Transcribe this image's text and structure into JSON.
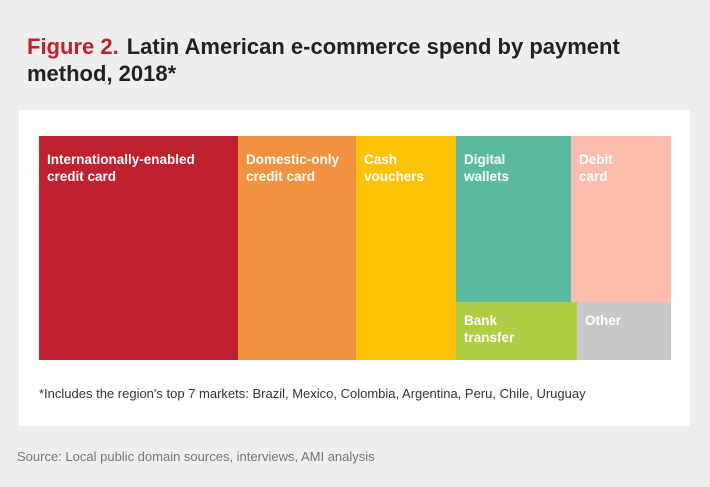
{
  "header": {
    "figure_label": "Figure 2.",
    "title": "Latin American e-commerce spend by payment method, 2018*"
  },
  "chart_data": {
    "type": "treemap",
    "title": "Latin American e-commerce spend by payment method, 2018*",
    "cells": [
      {
        "id": "intl-credit",
        "label": "Internationally-enabled\ncredit card",
        "color": "#c0212f"
      },
      {
        "id": "domestic-credit",
        "label": "Domestic-only\ncredit card",
        "color": "#f0923f"
      },
      {
        "id": "cash-vouchers",
        "label": "Cash\nvouchers",
        "color": "#fcc307"
      },
      {
        "id": "digital-wallets",
        "label": "Digital\nwallets",
        "color": "#5bbba0"
      },
      {
        "id": "debit-card",
        "label": "Debit\ncard",
        "color": "#fdbcae"
      },
      {
        "id": "bank-transfer",
        "label": "Bank\ntransfer",
        "color": "#aecd45"
      },
      {
        "id": "other",
        "label": "Other",
        "color": "#c8c8c8"
      }
    ],
    "footnote": "*Includes the region's top 7 markets: Brazil, Mexico, Colombia, Argentina, Peru, Chile, Uruguay"
  },
  "source": "Source: Local public domain sources, interviews, AMI analysis"
}
